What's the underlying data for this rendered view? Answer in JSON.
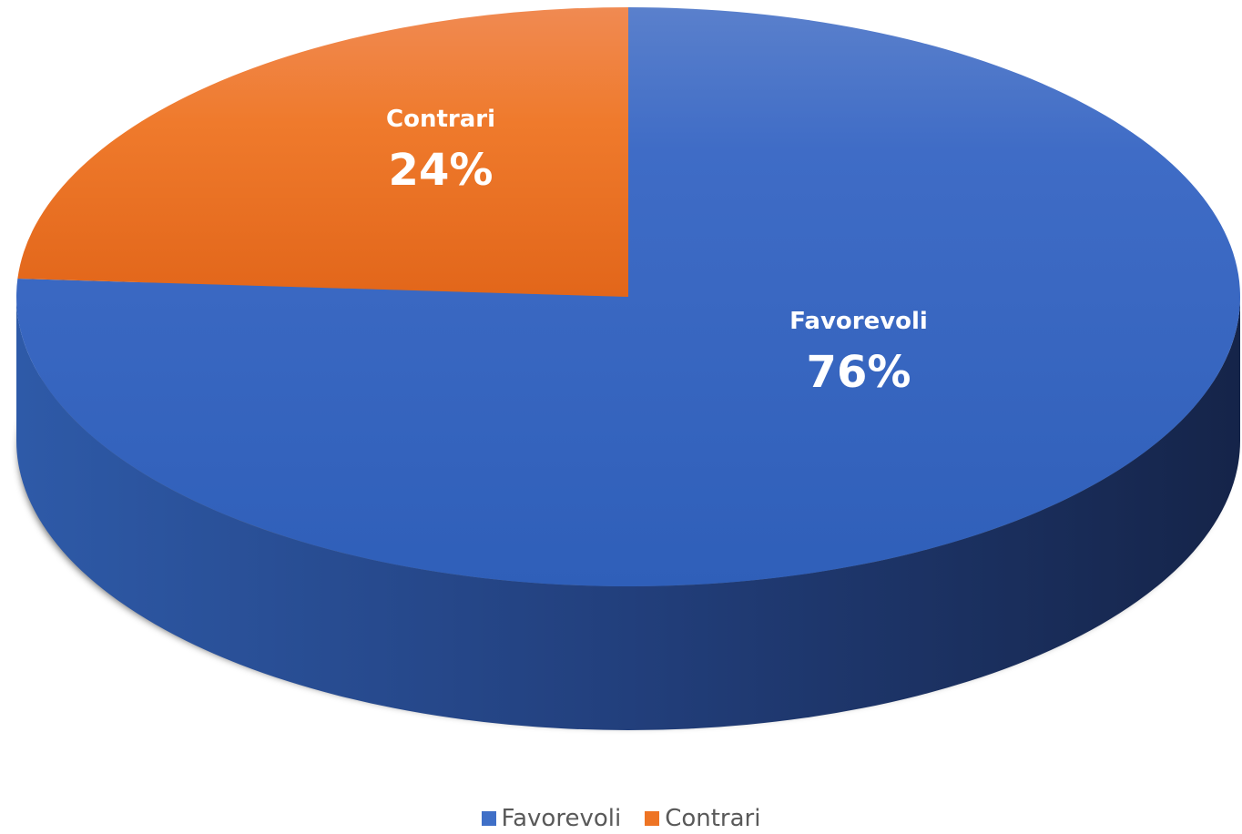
{
  "chart_data": {
    "type": "pie",
    "style": "3d",
    "slices": [
      {
        "label": "Favorevoli",
        "value": 76,
        "value_label": "76%",
        "color": "#3f6fc7"
      },
      {
        "label": "Contrari",
        "value": 24,
        "value_label": "24%",
        "color": "#ee7424"
      }
    ],
    "legend": {
      "placement": "bottom",
      "entries": [
        "Favorevoli",
        "Contrari"
      ]
    }
  },
  "colors": {
    "favorevoli_top": "#3f6fc7",
    "favorevoli_side": "#1f3f7e",
    "contrari_top": "#ee7424",
    "background": "#ffffff",
    "legend_text": "#595959"
  }
}
